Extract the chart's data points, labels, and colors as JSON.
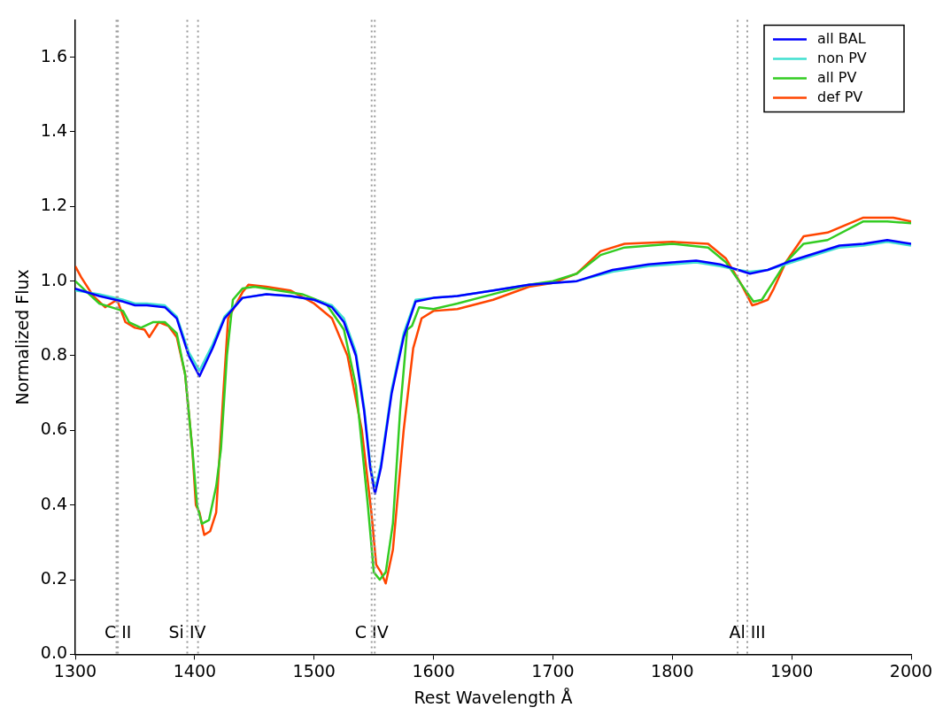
{
  "chart_data": {
    "type": "line",
    "xlabel": "Rest Wavelength Å",
    "ylabel": "Normalized Flux",
    "xlim": [
      1300,
      2000
    ],
    "ylim": [
      0,
      1.7
    ],
    "xticks": [
      1300,
      1400,
      1500,
      1600,
      1700,
      1800,
      1900,
      2000
    ],
    "yticks": [
      {
        "value": 0,
        "label": "0.0"
      },
      {
        "value": 0.2,
        "label": "0.2"
      },
      {
        "value": 0.4,
        "label": "0.4"
      },
      {
        "value": 0.6,
        "label": "0.6"
      },
      {
        "value": 0.8,
        "label": "0.8"
      },
      {
        "value": 1,
        "label": "1.0"
      },
      {
        "value": 1.2,
        "label": "1.2"
      },
      {
        "value": 1.4,
        "label": "1.4"
      },
      {
        "value": 1.6,
        "label": "1.6"
      }
    ],
    "grid": false,
    "legend": "top right",
    "marker": "none",
    "line_style": "solid",
    "series": [
      {
        "name": "all BAL",
        "color": "#0000ff",
        "x": [
          1300,
          1320,
          1340,
          1350,
          1360,
          1375,
          1385,
          1395,
          1404,
          1415,
          1425,
          1440,
          1460,
          1480,
          1500,
          1515,
          1525,
          1535,
          1542,
          1547,
          1551,
          1556,
          1565,
          1575,
          1585,
          1600,
          1620,
          1650,
          1680,
          1700,
          1720,
          1750,
          1780,
          1800,
          1820,
          1840,
          1855,
          1865,
          1880,
          1900,
          1920,
          1940,
          1960,
          1980,
          2000
        ],
        "values": [
          0.98,
          0.96,
          0.945,
          0.935,
          0.935,
          0.93,
          0.9,
          0.8,
          0.745,
          0.82,
          0.9,
          0.955,
          0.965,
          0.96,
          0.95,
          0.93,
          0.89,
          0.8,
          0.65,
          0.5,
          0.43,
          0.5,
          0.7,
          0.85,
          0.945,
          0.955,
          0.96,
          0.975,
          0.99,
          0.995,
          1.0,
          1.03,
          1.045,
          1.05,
          1.055,
          1.045,
          1.03,
          1.02,
          1.03,
          1.055,
          1.075,
          1.095,
          1.1,
          1.11,
          1.1
        ]
      },
      {
        "name": "non PV",
        "color": "#40e0d0",
        "x": [
          1300,
          1320,
          1340,
          1350,
          1360,
          1375,
          1385,
          1395,
          1404,
          1415,
          1425,
          1440,
          1460,
          1480,
          1500,
          1515,
          1525,
          1535,
          1542,
          1547,
          1551,
          1556,
          1565,
          1575,
          1585,
          1600,
          1620,
          1650,
          1680,
          1700,
          1720,
          1750,
          1780,
          1800,
          1820,
          1840,
          1855,
          1865,
          1880,
          1900,
          1920,
          1940,
          1960,
          1980,
          2000
        ],
        "values": [
          0.975,
          0.965,
          0.95,
          0.94,
          0.94,
          0.935,
          0.905,
          0.81,
          0.76,
          0.83,
          0.905,
          0.955,
          0.965,
          0.96,
          0.95,
          0.935,
          0.9,
          0.81,
          0.66,
          0.51,
          0.44,
          0.51,
          0.71,
          0.86,
          0.95,
          0.955,
          0.96,
          0.975,
          0.99,
          0.995,
          1.0,
          1.025,
          1.04,
          1.045,
          1.05,
          1.04,
          1.03,
          1.025,
          1.03,
          1.05,
          1.07,
          1.09,
          1.095,
          1.105,
          1.095
        ]
      },
      {
        "name": "all PV",
        "color": "#33cc22",
        "x": [
          1300,
          1310,
          1320,
          1330,
          1340,
          1345,
          1355,
          1365,
          1375,
          1385,
          1392,
          1398,
          1402,
          1406,
          1412,
          1418,
          1422,
          1427,
          1432,
          1440,
          1450,
          1470,
          1490,
          1510,
          1525,
          1535,
          1545,
          1550,
          1555,
          1560,
          1566,
          1572,
          1578,
          1582,
          1588,
          1600,
          1620,
          1650,
          1680,
          1700,
          1720,
          1740,
          1760,
          1800,
          1830,
          1845,
          1858,
          1868,
          1875,
          1885,
          1895,
          1910,
          1930,
          1960,
          1980,
          2000
        ],
        "values": [
          1.0,
          0.97,
          0.94,
          0.93,
          0.92,
          0.89,
          0.875,
          0.89,
          0.89,
          0.86,
          0.75,
          0.55,
          0.4,
          0.35,
          0.36,
          0.45,
          0.55,
          0.8,
          0.95,
          0.98,
          0.985,
          0.975,
          0.965,
          0.94,
          0.87,
          0.72,
          0.4,
          0.22,
          0.2,
          0.22,
          0.35,
          0.65,
          0.87,
          0.88,
          0.93,
          0.925,
          0.94,
          0.965,
          0.99,
          1.0,
          1.02,
          1.07,
          1.09,
          1.1,
          1.09,
          1.05,
          0.99,
          0.945,
          0.95,
          1.0,
          1.05,
          1.1,
          1.11,
          1.16,
          1.16,
          1.155
        ]
      },
      {
        "name": "def PV",
        "color": "#ff4500",
        "x": [
          1300,
          1305,
          1315,
          1325,
          1335,
          1342,
          1350,
          1358,
          1362,
          1370,
          1378,
          1385,
          1392,
          1398,
          1401,
          1404,
          1408,
          1413,
          1418,
          1424,
          1428,
          1435,
          1440,
          1445,
          1460,
          1480,
          1500,
          1515,
          1528,
          1540,
          1548,
          1552,
          1556,
          1560,
          1566,
          1575,
          1583,
          1590,
          1600,
          1620,
          1650,
          1680,
          1700,
          1720,
          1740,
          1760,
          1800,
          1830,
          1845,
          1858,
          1867,
          1872,
          1880,
          1885,
          1895,
          1910,
          1930,
          1960,
          1985,
          2000
        ],
        "values": [
          1.04,
          1.01,
          0.96,
          0.93,
          0.95,
          0.89,
          0.875,
          0.87,
          0.85,
          0.89,
          0.88,
          0.85,
          0.75,
          0.55,
          0.4,
          0.38,
          0.32,
          0.33,
          0.38,
          0.7,
          0.9,
          0.94,
          0.97,
          0.99,
          0.985,
          0.975,
          0.94,
          0.9,
          0.8,
          0.6,
          0.38,
          0.24,
          0.22,
          0.19,
          0.28,
          0.6,
          0.82,
          0.9,
          0.92,
          0.925,
          0.95,
          0.985,
          0.995,
          1.02,
          1.08,
          1.1,
          1.105,
          1.1,
          1.06,
          0.99,
          0.935,
          0.94,
          0.95,
          0.98,
          1.05,
          1.12,
          1.13,
          1.17,
          1.17,
          1.16
        ]
      }
    ],
    "ref_lines": [
      {
        "axis": "x",
        "value": 1334.5,
        "color": "#999999",
        "line_style": "dotted"
      },
      {
        "axis": "x",
        "value": 1335.7,
        "color": "#999999",
        "line_style": "dotted",
        "label": "C II"
      },
      {
        "axis": "x",
        "value": 1393.8,
        "color": "#999999",
        "line_style": "dotted",
        "label": "Si IV"
      },
      {
        "axis": "x",
        "value": 1402.8,
        "color": "#999999",
        "line_style": "dotted"
      },
      {
        "axis": "x",
        "value": 1548.2,
        "color": "#999999",
        "line_style": "dotted",
        "label": "C IV"
      },
      {
        "axis": "x",
        "value": 1550.8,
        "color": "#999999",
        "line_style": "dotted"
      },
      {
        "axis": "x",
        "value": 1854.7,
        "color": "#999999",
        "line_style": "dotted"
      },
      {
        "axis": "x",
        "value": 1862.8,
        "color": "#999999",
        "line_style": "dotted",
        "label": "Al III"
      }
    ]
  }
}
